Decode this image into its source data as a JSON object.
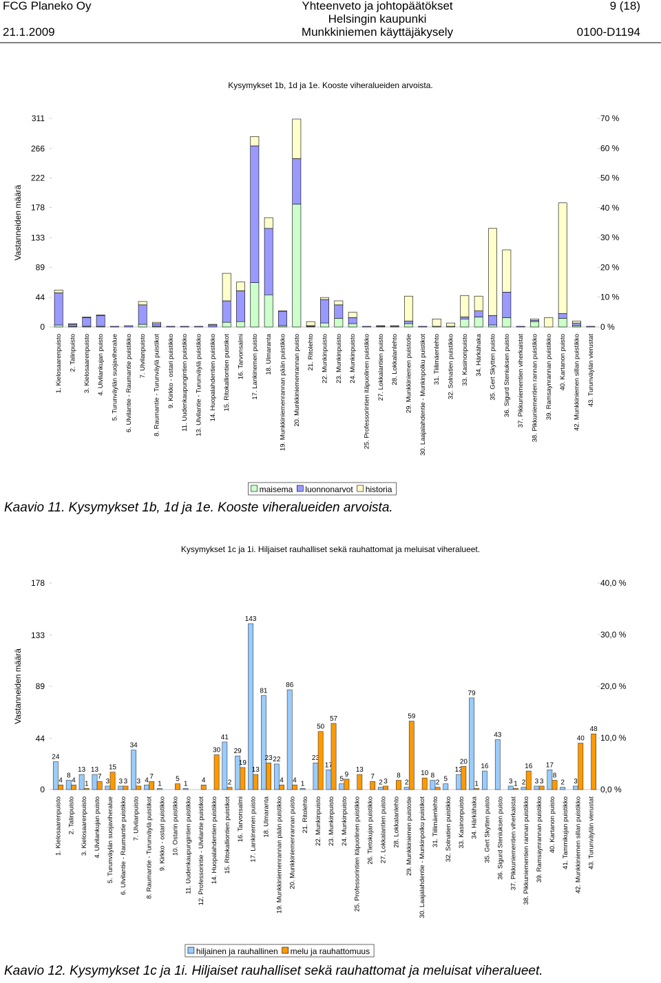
{
  "header": {
    "company": "FCG Planeko Oy",
    "title": "Yhteenveto ja johtopäätökset",
    "page": "9 (18)",
    "date": "21.1.2009",
    "client": "Helsingin kaupunki",
    "project": "Munkkiniemen käyttäjäkysely",
    "code": "0100-D1194"
  },
  "chart_data": [
    {
      "type": "bar",
      "stacked": true,
      "title": "Kysymykset 1b, 1d ja 1e. Kooste viheralueiden arvoista.",
      "caption": "Kaavio 11. Kysymykset 1b, 1d ja 1e. Kooste viheralueiden arvoista.",
      "ylabel": "Vastanneiden määrä",
      "categories": [
        "1. Kielosaarenpuisto",
        "2. Talinpuisto",
        "3. Kielosaarenpuisto",
        "4. Ulvilankujan puisto",
        "5. Turunväylän suojaviheralue",
        "6. Ulvilantie - Raumantie puistikko",
        "7. Ulvilanpuisto",
        "8. Raumantie - Turunväylä puistikot",
        "9. Kirkko - ostari puistikko",
        "11. Uudenkaupungintien puistikko",
        "13. Ulvilantie - Turunväylä puistikko",
        "14. Huopalahdentien puistikko",
        "15. Ritokalliontien puistikot",
        "16. Tarvonsalmi",
        "17. Lankinemen puisto",
        "18. Ulmaranta",
        "19. Munkkiniemenrannan pään puistikko",
        "20. Munkkiniemenrannan puisto",
        "21. Ritolehto",
        "22. Munkinpuisto",
        "23. Munkinpuisto",
        "24. Munkinpuisto",
        "25. Professorintien itäpuolinen puistikko",
        "27. Lokkalantien puisto",
        "28. Lokkalanlehto",
        "29. Munkkiniemen puistotie",
        "30. Laajalahdentie - Munkinpolku puistikot",
        "31. Tiilimäenlehto",
        "32. Solnatien puistikko",
        "33. Kasinonpuisto",
        "34. Härkähaka",
        "35. Gert Skytten puisto",
        "36. Sigurd Steniuksen puisto",
        "37. Pikkuniementien viherkaistat",
        "38. Pikkuniementien rannan puistikko",
        "39. Ramsaynrannan puistikko",
        "40. Kartanon puisto",
        "42. Munkkiniemen sillan puistikko",
        "43. Turunväylän vierustat"
      ],
      "series": [
        {
          "name": "maisema",
          "color": "#ccffcc",
          "values": [
            3,
            1,
            1,
            1,
            0,
            0,
            4,
            1,
            0,
            0,
            0,
            0,
            7,
            8,
            66,
            48,
            2,
            183,
            1,
            6,
            13,
            5,
            0,
            1,
            1,
            5,
            0,
            1,
            1,
            12,
            15,
            3,
            14,
            0,
            8,
            0,
            13,
            2,
            0
          ]
        },
        {
          "name": "luonnonarvot",
          "color": "#9999ff",
          "values": [
            48,
            3,
            13,
            16,
            1,
            2,
            29,
            4,
            1,
            1,
            1,
            3,
            32,
            46,
            204,
            99,
            21,
            68,
            1,
            35,
            20,
            9,
            1,
            1,
            0,
            4,
            1,
            0,
            0,
            3,
            9,
            14,
            38,
            1,
            2,
            0,
            7,
            4,
            1
          ]
        },
        {
          "name": "historia",
          "color": "#ffffcc",
          "values": [
            4,
            1,
            1,
            1,
            0,
            0,
            5,
            2,
            0,
            0,
            0,
            1,
            41,
            13,
            14,
            16,
            1,
            59,
            6,
            3,
            6,
            8,
            0,
            0,
            1,
            37,
            0,
            11,
            5,
            32,
            22,
            130,
            63,
            0,
            2,
            14,
            165,
            3,
            0
          ]
        }
      ],
      "ylim": [
        0,
        311
      ],
      "yticks": [
        0,
        44,
        89,
        133,
        178,
        222,
        266,
        311
      ],
      "y2lim": [
        0,
        70
      ],
      "y2ticks": [
        {
          "value": 0,
          "label": "0 %"
        },
        {
          "value": 10,
          "label": "10 %"
        },
        {
          "value": 20,
          "label": "20 %"
        },
        {
          "value": 30,
          "label": "30 %"
        },
        {
          "value": 40,
          "label": "40 %"
        },
        {
          "value": 50,
          "label": "50 %"
        },
        {
          "value": 60,
          "label": "60 %"
        },
        {
          "value": 70,
          "label": "70 %"
        }
      ],
      "grid": false,
      "legend": "bottom"
    },
    {
      "type": "bar",
      "stacked": false,
      "title": "Kysymykset 1c ja 1i. Hiljaiset rauhalliset sekä rauhattomat ja meluisat viheralueet.",
      "caption": "Kaavio 12. Kysymykset 1c ja 1i. Hiljaiset rauhalliset sekä rauhattomat ja meluisat viheralueet.",
      "ylabel": "Vastanneiden määrä",
      "categories": [
        "1. Kielosaarenpuisto",
        "2. Talinpuisto",
        "3. Kielosaarenpuisto",
        "4. Ulvilankujan puisto",
        "5. Turunväylän suojaviheralue",
        "6. Ulvilantie - Raumantie puistikko",
        "7. Ulvilanpuisto",
        "8. Raumantie - Turunväylä puistikot",
        "9. Kirkko - ostari puistikko",
        "10. Ostarin puistikko",
        "11. Uudenkaupungintien puistikko",
        "12. Professorintie - Ulvilantie puistikot",
        "14. Huopalahdentien puistikko",
        "15. Ritokalliontien puistikot",
        "16. Tarvonsalmi",
        "17. Lankinemen puisto",
        "18. Ulmaranta",
        "19. Munkkiniemenrannan pään puistikko",
        "20. Munkkiniemenrannan puisto",
        "21. Ritolehto",
        "22. Munkinpuisto",
        "23. Munkinpuisto",
        "24. Munkinpuisto",
        "25. Professorintien itäpuolinen puistikko",
        "26. Tietokujan puistikko",
        "27. Lokkalantien puisto",
        "28. Lokkalanlehto",
        "29. Munkkiniemen puistotie",
        "30. Laajalahdentie - Munkinpolku puistikot",
        "31. Tiilimäenlehto",
        "32. Solnatien puistikko",
        "33. Kasinonpuisto",
        "34. Härkähaka",
        "35. Gert Skytten puisto",
        "36. Sigurd Steniuksen puisto",
        "37. Pikkuniementien viherkaistat",
        "38. Pikkuniementien rannan puistikko",
        "39. Ramsaynrannan puistikko",
        "40. Kartanon puisto",
        "41. Tammikujan puistikko",
        "42. Munkkiniemen sillan puistikko",
        "43. Turunväylän vierustat"
      ],
      "series": [
        {
          "name": "hiljainen ja rauhallinen",
          "color": "#99ccff",
          "values": [
            24,
            8,
            13,
            13,
            3,
            3,
            34,
            4,
            1,
            0,
            1,
            0,
            0,
            41,
            29,
            143,
            81,
            22,
            86,
            1,
            23,
            17,
            5,
            0,
            0,
            2,
            0,
            2,
            0,
            8,
            5,
            13,
            79,
            16,
            43,
            3,
            2,
            3,
            17,
            2,
            3,
            0
          ]
        },
        {
          "name": "melu ja rauhattomuus",
          "color": "#ff9900",
          "values": [
            4,
            4,
            1,
            7,
            15,
            3,
            3,
            7,
            0,
            5,
            0,
            4,
            30,
            2,
            19,
            13,
            23,
            4,
            4,
            0,
            50,
            57,
            9,
            13,
            7,
            3,
            8,
            59,
            10,
            2,
            0,
            20,
            1,
            0,
            0,
            1,
            16,
            3,
            8,
            0,
            40,
            48
          ]
        }
      ],
      "ylim": [
        0,
        178
      ],
      "yticks": [
        0,
        44,
        89,
        133,
        178
      ],
      "y2lim": [
        0,
        40
      ],
      "y2ticks": [
        {
          "value": 0,
          "label": "0,0 %"
        },
        {
          "value": 10,
          "label": "10,0 %"
        },
        {
          "value": 20,
          "label": "20,0 %"
        },
        {
          "value": 30,
          "label": "30,0 %"
        },
        {
          "value": 40,
          "label": "40,0 %"
        }
      ],
      "grid": false,
      "legend": "bottom",
      "data_labels": true
    }
  ]
}
